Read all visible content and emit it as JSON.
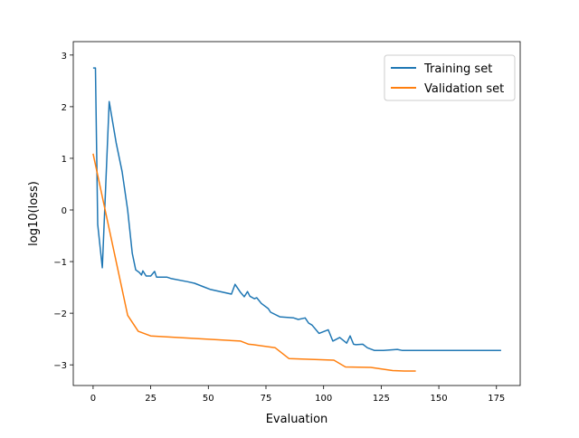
{
  "chart_data": {
    "type": "line",
    "title": "",
    "xlabel": "Evaluation",
    "ylabel": "log10(loss)",
    "xlim": [
      -8.6,
      185.3
    ],
    "ylim": [
      -3.4,
      3.26
    ],
    "xticks": [
      0,
      25,
      50,
      75,
      100,
      125,
      150,
      175
    ],
    "yticks": [
      -3,
      -2,
      -1,
      0,
      1,
      2,
      3
    ],
    "grid": false,
    "legend_position": "top-right",
    "series": [
      {
        "name": "Training set",
        "color": "#1f77b4",
        "x": [
          0,
          1,
          2,
          4,
          7,
          10,
          12.6,
          15,
          17,
          18.5,
          20,
          21,
          21.6,
          23,
          25,
          26.7,
          27.5,
          32,
          34,
          41,
          44,
          48,
          51,
          60,
          61.6,
          64,
          65.6,
          67,
          68,
          70,
          71,
          73,
          76,
          77,
          81,
          87,
          89,
          92,
          93.5,
          95,
          98,
          102,
          104,
          107,
          110,
          111.5,
          113,
          114,
          117,
          119,
          122,
          126,
          132,
          134,
          177
        ],
        "y": [
          2.75,
          2.75,
          -0.28,
          -1.12,
          2.1,
          1.3,
          0.74,
          0,
          -0.84,
          -1.16,
          -1.21,
          -1.26,
          -1.18,
          -1.28,
          -1.28,
          -1.19,
          -1.3,
          -1.3,
          -1.33,
          -1.39,
          -1.42,
          -1.49,
          -1.54,
          -1.63,
          -1.44,
          -1.6,
          -1.68,
          -1.58,
          -1.67,
          -1.72,
          -1.7,
          -1.81,
          -1.91,
          -1.98,
          -2.07,
          -2.09,
          -2.12,
          -2.09,
          -2.19,
          -2.23,
          -2.39,
          -2.32,
          -2.54,
          -2.47,
          -2.58,
          -2.44,
          -2.6,
          -2.61,
          -2.6,
          -2.67,
          -2.72,
          -2.72,
          -2.7,
          -2.72,
          -2.72
        ]
      },
      {
        "name": "Validation set",
        "color": "#ff7f0e",
        "x": [
          0,
          15,
          19.6,
          25,
          64,
          67.5,
          69.5,
          79,
          85,
          104.5,
          109.5,
          120.5,
          130,
          135,
          140
        ],
        "y": [
          1.09,
          -2.04,
          -2.35,
          -2.44,
          -2.54,
          -2.6,
          -2.61,
          -2.67,
          -2.88,
          -2.91,
          -3.04,
          -3.05,
          -3.11,
          -3.12,
          -3.12
        ]
      }
    ]
  }
}
